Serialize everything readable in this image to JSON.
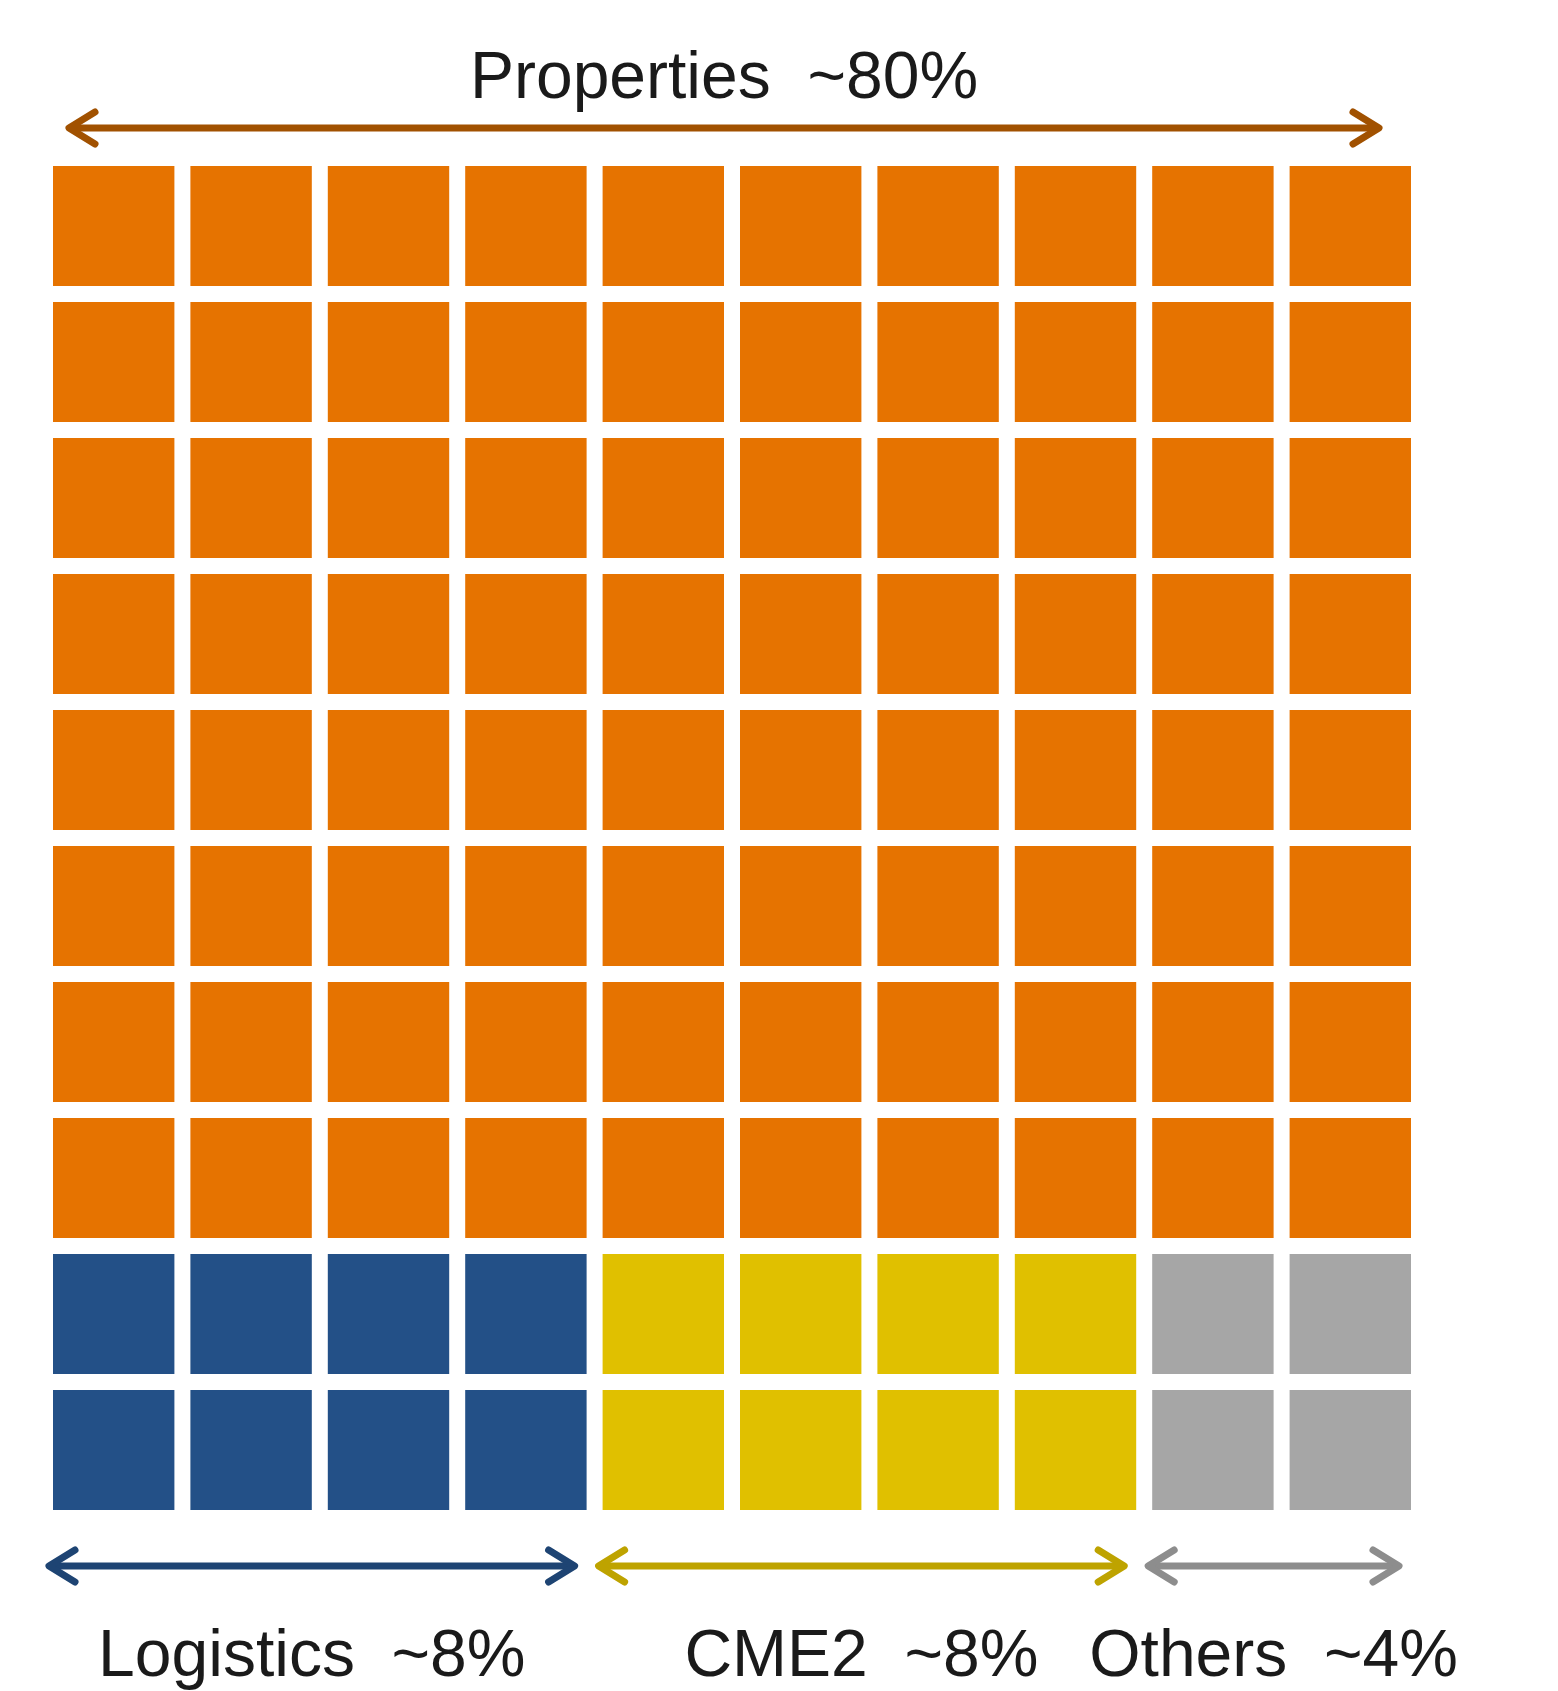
{
  "chart_data": {
    "type": "other",
    "categories": [
      "Properties",
      "Logistics",
      "CME2",
      "Others"
    ],
    "values": [
      80,
      8,
      8,
      4
    ],
    "value_labels": [
      "~80%",
      "~8%",
      "~8%",
      "~4%"
    ],
    "colors": [
      "#e67300",
      "#235087",
      "#e0c000",
      "#a6a6a6"
    ]
  }
}
